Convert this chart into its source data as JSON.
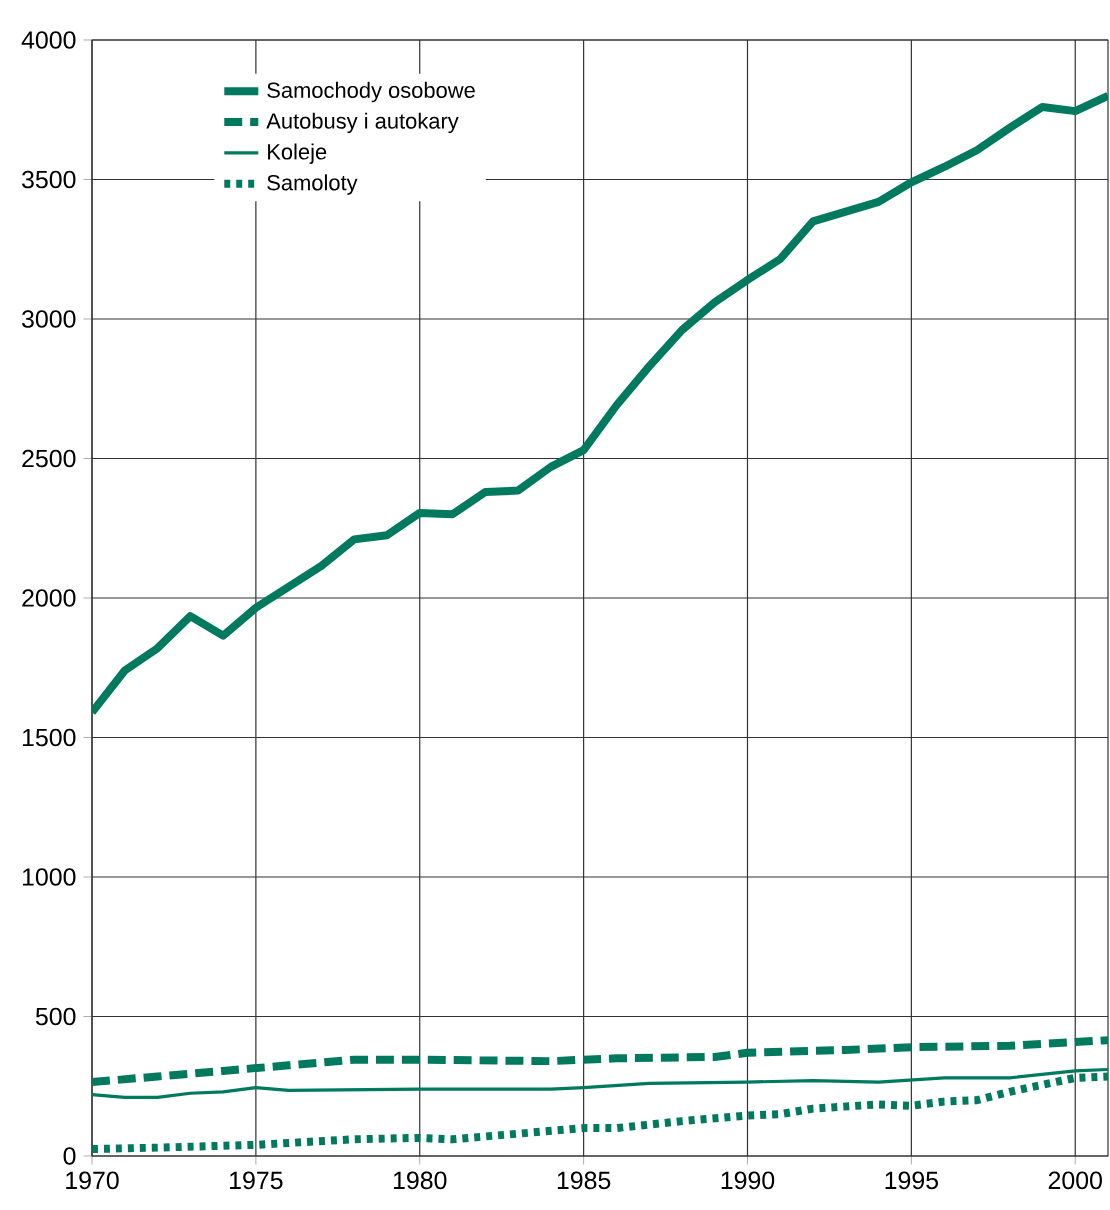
{
  "chart_data": {
    "type": "line",
    "xlim": [
      1970,
      2001
    ],
    "xticks": [
      1970,
      1975,
      1980,
      1985,
      1990,
      1995,
      2000
    ],
    "ylim": [
      0,
      4000
    ],
    "yticks": [
      0,
      500,
      1000,
      1500,
      2000,
      2500,
      3000,
      3500,
      4000
    ],
    "grid": true,
    "legend": "top left",
    "marker": "none",
    "series": [
      {
        "name": "Samochody osobowe",
        "color": "#007a5e",
        "line_style": "solid",
        "x": [
          1970,
          1971,
          1972,
          1973,
          1974,
          1975,
          1976,
          1977,
          1978,
          1979,
          1980,
          1981,
          1982,
          1983,
          1984,
          1985,
          1986,
          1987,
          1988,
          1989,
          1990,
          1991,
          1992,
          1993,
          1994,
          1995,
          1996,
          1997,
          1998,
          1999,
          2000,
          2001
        ],
        "values": [
          1590,
          1740,
          1820,
          1935,
          1865,
          1965,
          2040,
          2115,
          2210,
          2225,
          2305,
          2300,
          2380,
          2385,
          2470,
          2530,
          2690,
          2830,
          2960,
          3060,
          3140,
          3215,
          3350,
          3385,
          3420,
          3490,
          3545,
          3605,
          3685,
          3760,
          3745,
          3800
        ]
      },
      {
        "name": "Autobusy i autokary",
        "color": "#007a5e",
        "line_style": "dashed",
        "x": [
          1970,
          1972,
          1974,
          1976,
          1978,
          1980,
          1984,
          1986,
          1989,
          1990,
          1993,
          1995,
          1998,
          2001
        ],
        "values": [
          265,
          285,
          305,
          325,
          345,
          345,
          340,
          350,
          355,
          370,
          380,
          390,
          395,
          415
        ]
      },
      {
        "name": "Koleje",
        "color": "#007a5e",
        "line_style": "solid",
        "x": [
          1970,
          1971,
          1972,
          1973,
          1974,
          1975,
          1976,
          1980,
          1984,
          1985,
          1987,
          1990,
          1992,
          1994,
          1996,
          1998,
          2000,
          2001
        ],
        "values": [
          220,
          210,
          210,
          225,
          230,
          245,
          235,
          240,
          240,
          245,
          260,
          265,
          270,
          265,
          280,
          280,
          305,
          310
        ]
      },
      {
        "name": "Samoloty",
        "color": "#007a5e",
        "line_style": "dotted",
        "x": [
          1970,
          1972,
          1975,
          1978,
          1980,
          1981,
          1983,
          1985,
          1986,
          1988,
          1990,
          1991,
          1992,
          1994,
          1995,
          1996,
          1997,
          1998,
          2000,
          2001
        ],
        "values": [
          25,
          30,
          40,
          60,
          65,
          60,
          80,
          100,
          100,
          125,
          145,
          150,
          170,
          185,
          180,
          195,
          200,
          230,
          280,
          285
        ]
      }
    ]
  }
}
